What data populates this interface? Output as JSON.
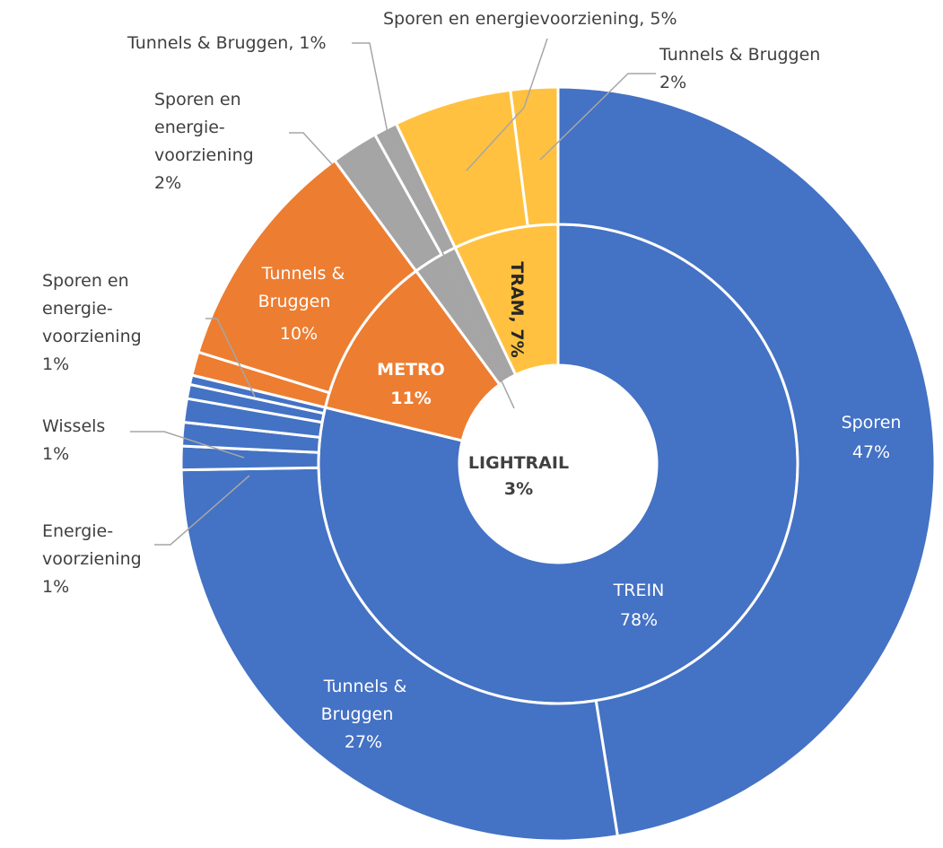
{
  "chart_data": {
    "type": "sunburst",
    "inner_ring": [
      {
        "label": "TREIN",
        "value_label": "78%",
        "value": 78,
        "color": "#4472C4"
      },
      {
        "label": "METRO",
        "value_label": "11%",
        "value": 11,
        "color": "#ED7D31"
      },
      {
        "label": "LIGHTRAIL",
        "value_label": "3%",
        "value": 3,
        "color": "#A5A5A5"
      },
      {
        "label": "TRAM, 7%",
        "value_label": "",
        "value": 7,
        "color": "#FFC13F"
      }
    ],
    "outer_ring": [
      {
        "parent": "TREIN",
        "label": "Sporen",
        "value_label": "47%",
        "value": 47,
        "color": "#4472C4"
      },
      {
        "parent": "TREIN",
        "label": "Tunnels & Bruggen",
        "value_label": "27%",
        "value": 27,
        "color": "#4472C4"
      },
      {
        "parent": "TREIN",
        "label": "Energievoorziening",
        "value_label": "1%",
        "value": 1,
        "color": "#4472C4"
      },
      {
        "parent": "TREIN",
        "label": "",
        "value_label": "",
        "value": 1,
        "color": "#4472C4"
      },
      {
        "parent": "TREIN",
        "label": "Wissels",
        "value_label": "1%",
        "value": 1,
        "color": "#4472C4"
      },
      {
        "parent": "TREIN",
        "label": "",
        "value_label": "",
        "value": 0.6,
        "color": "#4472C4"
      },
      {
        "parent": "TREIN",
        "label": "",
        "value_label": "",
        "value": 0.4,
        "color": "#4472C4"
      },
      {
        "parent": "METRO",
        "label": "Sporen en energievoorziening",
        "value_label": "1%",
        "value": 1,
        "color": "#ED7D31"
      },
      {
        "parent": "METRO",
        "label": "Tunnels & Bruggen",
        "value_label": "10%",
        "value": 10,
        "color": "#ED7D31"
      },
      {
        "parent": "LIGHTRAIL",
        "label": "Sporen en energievoorziening",
        "value_label": "2%",
        "value": 2,
        "color": "#A5A5A5"
      },
      {
        "parent": "LIGHTRAIL",
        "label": "Tunnels & Bruggen",
        "value_label": "1%",
        "value": 1,
        "color": "#A5A5A5"
      },
      {
        "parent": "TRAM",
        "label": "Sporen en energievoorziening",
        "value_label": "5%",
        "value": 5,
        "color": "#FFC13F"
      },
      {
        "parent": "TRAM",
        "label": "Tunnels & Bruggen",
        "value_label": "2%",
        "value": 2,
        "color": "#FFC13F"
      }
    ],
    "texts": {
      "center_name": "LIGHTRAIL",
      "center_value": "3%",
      "trein_name": "TREIN",
      "trein_value": "78%",
      "metro_name": "METRO",
      "metro_value": "11%",
      "tram": "TRAM, 7%",
      "sporen_name": "Sporen",
      "sporen_value": "47%",
      "tb_trein_1": "Tunnels &",
      "tb_trein_2": "Bruggen",
      "tb_trein_3": "27%",
      "tb_metro_1": "Tunnels &",
      "tb_metro_2": "Bruggen",
      "tb_metro_3": "10%",
      "tram_sporen": "Sporen en energievoorziening, 5%",
      "tram_tb_1": "Tunnels & Bruggen",
      "tram_tb_2": "2%",
      "lr_tb": "Tunnels & Bruggen, 1%",
      "lr_sporen_1": "Sporen en",
      "lr_sporen_2": "energie-",
      "lr_sporen_3": "voorziening",
      "lr_sporen_4": "2%",
      "metro_sporen_1": "Sporen en",
      "metro_sporen_2": "energie-",
      "metro_sporen_3": "voorziening",
      "metro_sporen_4": "1%",
      "wissels_1": "Wissels",
      "wissels_2": "1%",
      "energie_1": "Energie-",
      "energie_2": "voorziening",
      "energie_3": "1%"
    }
  }
}
